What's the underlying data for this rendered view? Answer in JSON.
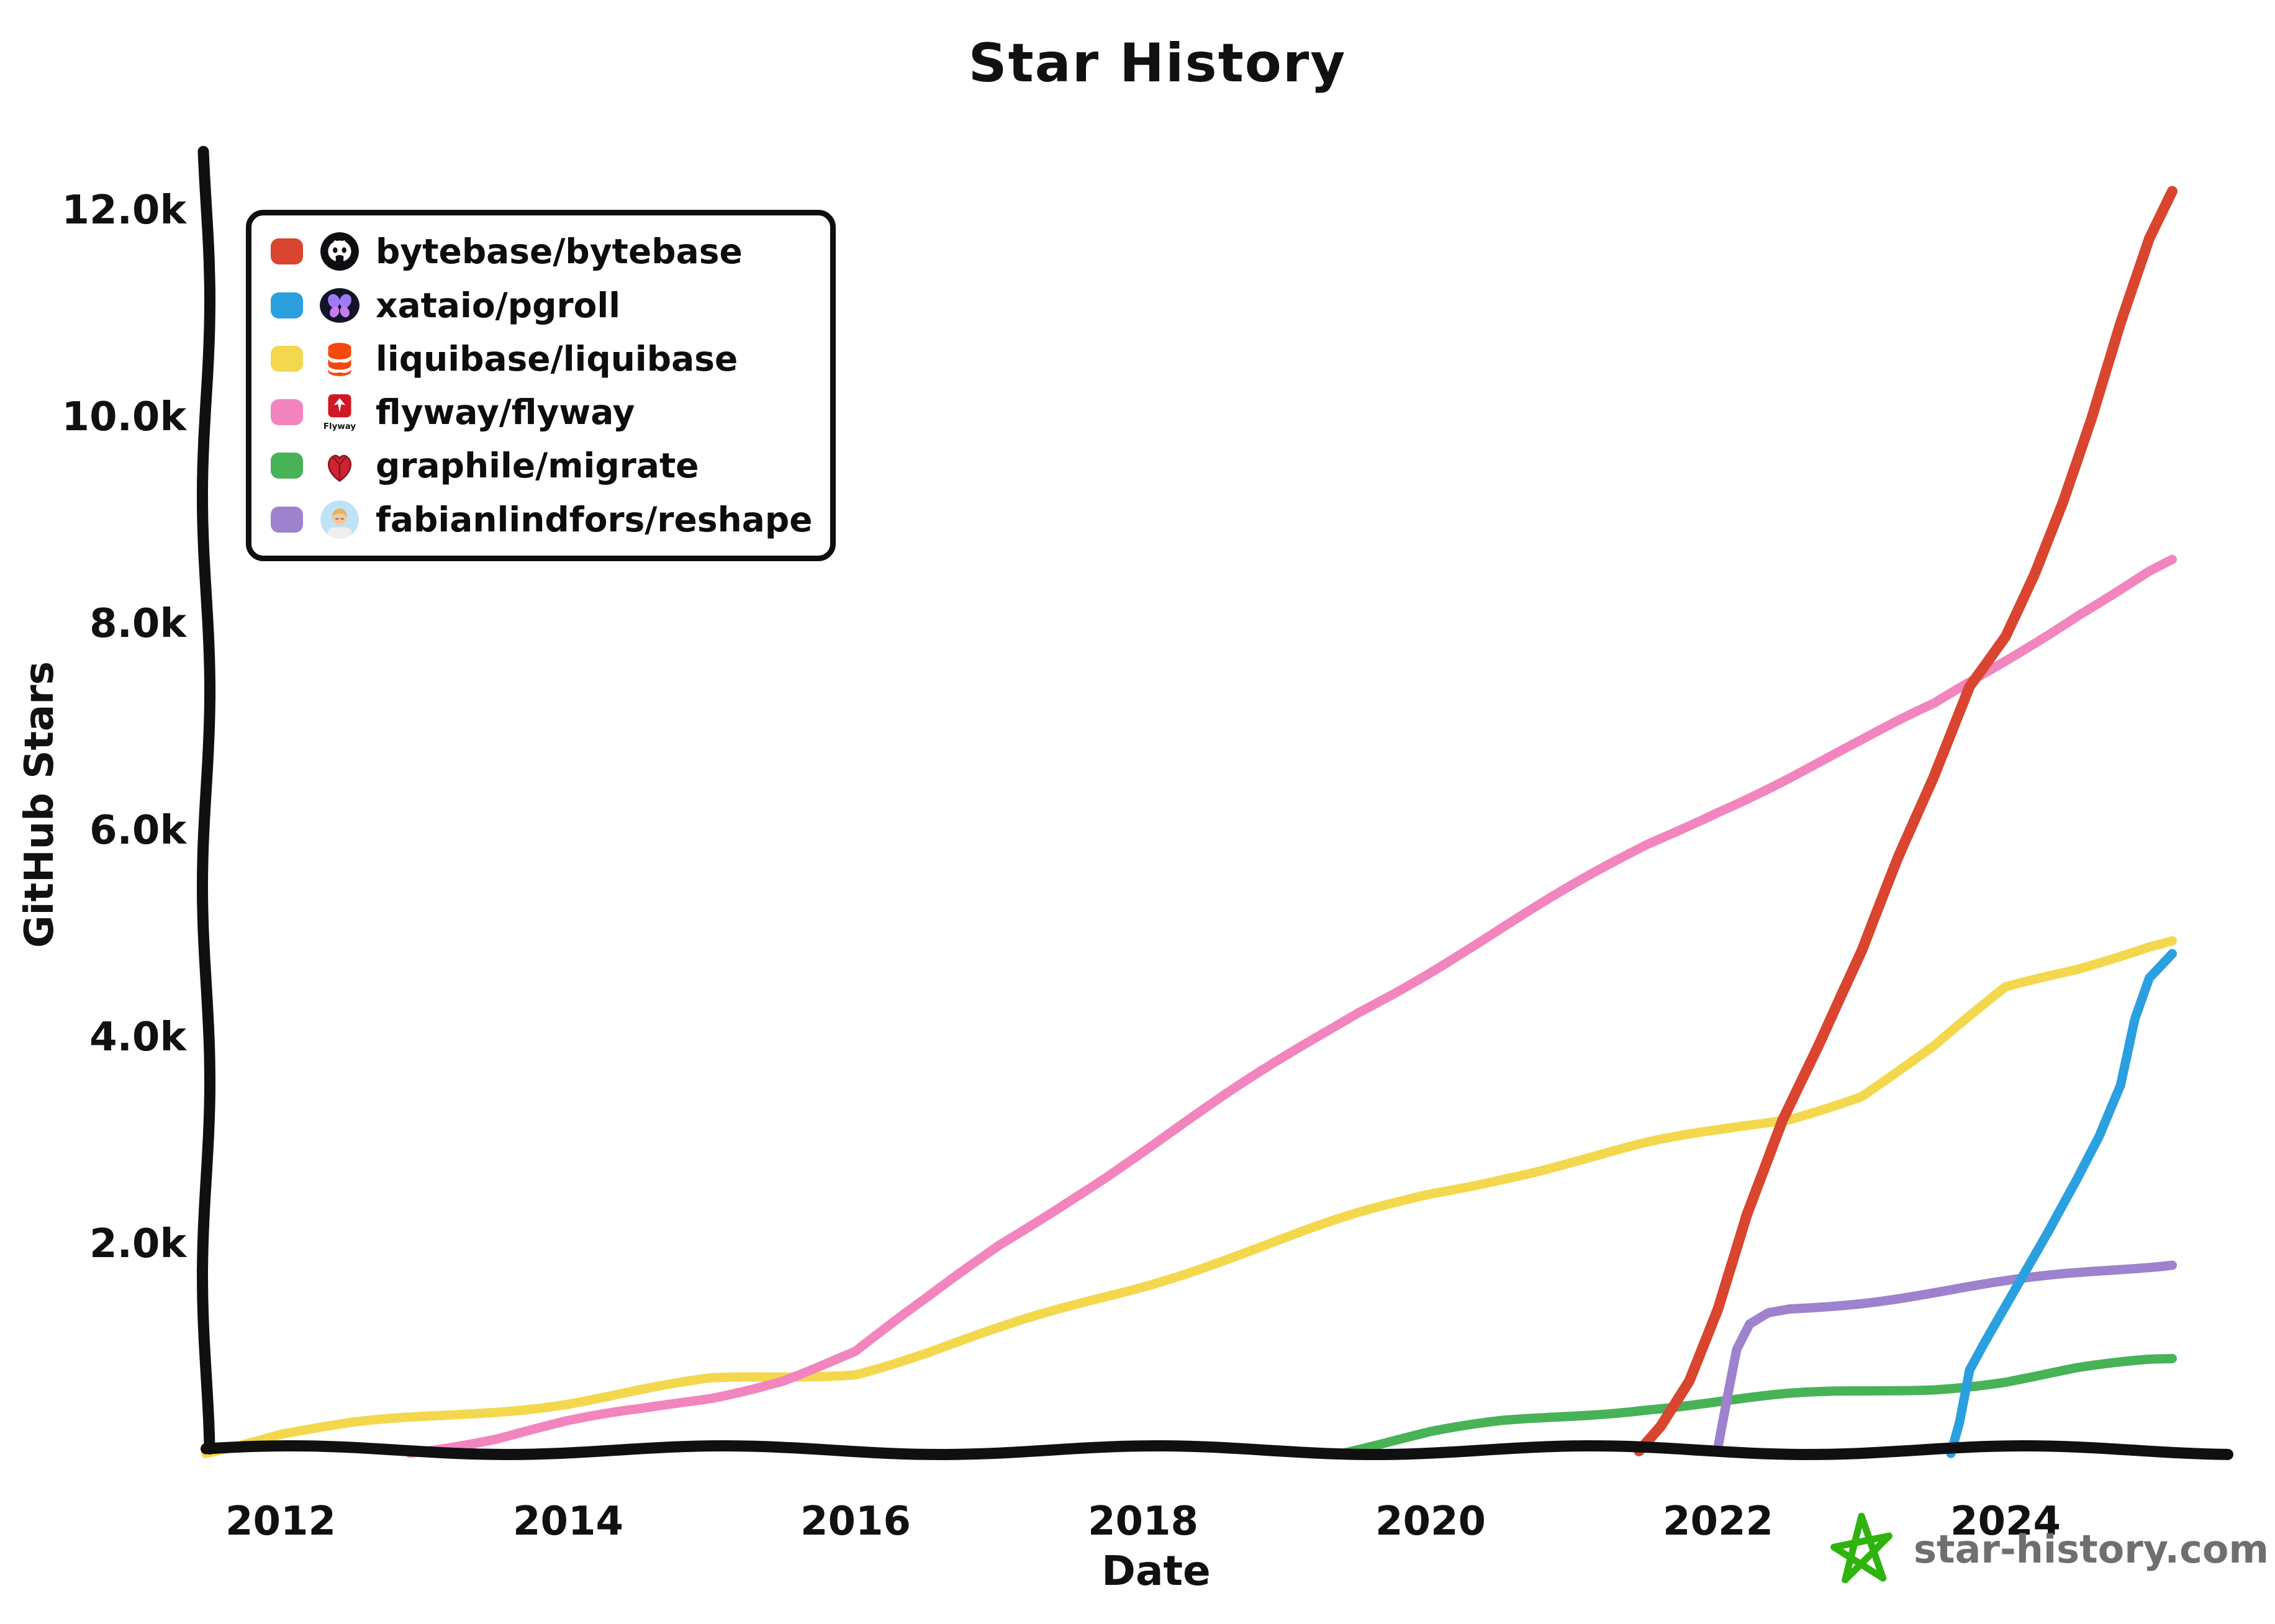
{
  "title": "Star History",
  "axes": {
    "x_label": "Date",
    "y_label": "GitHub Stars",
    "x_ticks": [
      "2012",
      "2014",
      "2016",
      "2018",
      "2020",
      "2022",
      "2024"
    ],
    "y_ticks": [
      "2.0k",
      "4.0k",
      "6.0k",
      "8.0k",
      "10.0k",
      "12.0k"
    ]
  },
  "watermark": {
    "text": "star-history.com",
    "star_color": "#2fb30e",
    "text_color": "#6f6f6f"
  },
  "legend": {
    "flyway_icon_text": "Flyway"
  },
  "chart_data": {
    "type": "line",
    "title": "Star History",
    "xlabel": "Date",
    "ylabel": "GitHub Stars",
    "x_range": [
      2011.48,
      2025.25
    ],
    "y_range": [
      0,
      12400
    ],
    "x_tick_years": [
      2012,
      2014,
      2016,
      2018,
      2020,
      2022,
      2024
    ],
    "y_tick_values": [
      2000,
      4000,
      6000,
      8000,
      10000,
      12000
    ],
    "grid": false,
    "legend_position": "top-left",
    "units": "GitHub stars",
    "series": [
      {
        "name": "bytebase/bytebase",
        "color": "#d9452f",
        "icon": "bytebase-avatar",
        "points": [
          [
            2021.45,
            0
          ],
          [
            2021.6,
            250
          ],
          [
            2021.8,
            700
          ],
          [
            2022.0,
            1400
          ],
          [
            2022.2,
            2300
          ],
          [
            2022.45,
            3200
          ],
          [
            2022.7,
            3900
          ],
          [
            2023.0,
            4800
          ],
          [
            2023.25,
            5700
          ],
          [
            2023.5,
            6500
          ],
          [
            2023.75,
            7400
          ],
          [
            2024.0,
            7900
          ],
          [
            2024.2,
            8500
          ],
          [
            2024.4,
            9200
          ],
          [
            2024.6,
            10000
          ],
          [
            2024.8,
            10900
          ],
          [
            2025.0,
            11700
          ],
          [
            2025.16,
            12150
          ]
        ]
      },
      {
        "name": "xataio/pgroll",
        "color": "#2ba0e0",
        "icon": "xata-butterfly",
        "points": [
          [
            2023.62,
            0
          ],
          [
            2023.68,
            300
          ],
          [
            2023.75,
            800
          ],
          [
            2023.85,
            1050
          ],
          [
            2024.0,
            1400
          ],
          [
            2024.15,
            1750
          ],
          [
            2024.3,
            2100
          ],
          [
            2024.5,
            2600
          ],
          [
            2024.65,
            3000
          ],
          [
            2024.8,
            3500
          ],
          [
            2024.9,
            4150
          ],
          [
            2025.0,
            4550
          ],
          [
            2025.16,
            4800
          ]
        ]
      },
      {
        "name": "liquibase/liquibase",
        "color": "#f3d84e",
        "icon": "liquibase-logo",
        "points": [
          [
            2011.48,
            0
          ],
          [
            2012.0,
            160
          ],
          [
            2012.5,
            240
          ],
          [
            2013.0,
            310
          ],
          [
            2013.5,
            390
          ],
          [
            2014.0,
            470
          ],
          [
            2014.5,
            570
          ],
          [
            2015.0,
            670
          ],
          [
            2015.5,
            710
          ],
          [
            2016.0,
            760
          ],
          [
            2016.5,
            950
          ],
          [
            2017.0,
            1160
          ],
          [
            2017.5,
            1380
          ],
          [
            2018.0,
            1600
          ],
          [
            2018.5,
            1830
          ],
          [
            2019.0,
            2050
          ],
          [
            2019.5,
            2270
          ],
          [
            2020.0,
            2480
          ],
          [
            2020.5,
            2650
          ],
          [
            2021.0,
            2800
          ],
          [
            2021.5,
            2950
          ],
          [
            2022.0,
            3080
          ],
          [
            2022.5,
            3220
          ],
          [
            2023.0,
            3450
          ],
          [
            2023.5,
            3900
          ],
          [
            2024.0,
            4450
          ],
          [
            2024.5,
            4650
          ],
          [
            2025.0,
            4900
          ],
          [
            2025.16,
            4960
          ]
        ]
      },
      {
        "name": "flyway/flyway",
        "color": "#f285bd",
        "icon": "flyway-logo",
        "points": [
          [
            2012.9,
            0
          ],
          [
            2013.5,
            120
          ],
          [
            2014.0,
            260
          ],
          [
            2014.5,
            380
          ],
          [
            2015.0,
            520
          ],
          [
            2015.5,
            700
          ],
          [
            2016.0,
            950
          ],
          [
            2016.5,
            1450
          ],
          [
            2017.0,
            1980
          ],
          [
            2017.5,
            2450
          ],
          [
            2018.0,
            2900
          ],
          [
            2018.5,
            3350
          ],
          [
            2019.0,
            3800
          ],
          [
            2019.5,
            4250
          ],
          [
            2020.0,
            4650
          ],
          [
            2020.5,
            5050
          ],
          [
            2021.0,
            5450
          ],
          [
            2021.5,
            5850
          ],
          [
            2022.0,
            6200
          ],
          [
            2022.5,
            6520
          ],
          [
            2023.0,
            6850
          ],
          [
            2023.5,
            7200
          ],
          [
            2024.0,
            7650
          ],
          [
            2024.5,
            8100
          ],
          [
            2025.0,
            8500
          ],
          [
            2025.16,
            8600
          ]
        ]
      },
      {
        "name": "graphile/migrate",
        "color": "#48b257",
        "icon": "graphile-heart",
        "points": [
          [
            2019.4,
            0
          ],
          [
            2019.7,
            80
          ],
          [
            2020.0,
            160
          ],
          [
            2020.5,
            260
          ],
          [
            2021.0,
            340
          ],
          [
            2021.5,
            420
          ],
          [
            2022.0,
            470
          ],
          [
            2022.5,
            520
          ],
          [
            2023.0,
            560
          ],
          [
            2023.5,
            610
          ],
          [
            2024.0,
            680
          ],
          [
            2024.5,
            780
          ],
          [
            2025.0,
            850
          ],
          [
            2025.16,
            865
          ]
        ]
      },
      {
        "name": "fabianlindfors/reshape",
        "color": "#9e82cd",
        "icon": "fabianlindfors-avatar",
        "points": [
          [
            2022.0,
            0
          ],
          [
            2022.06,
            450
          ],
          [
            2022.13,
            950
          ],
          [
            2022.22,
            1200
          ],
          [
            2022.35,
            1320
          ],
          [
            2022.5,
            1370
          ],
          [
            2022.75,
            1410
          ],
          [
            2023.0,
            1450
          ],
          [
            2023.5,
            1530
          ],
          [
            2024.0,
            1610
          ],
          [
            2024.5,
            1700
          ],
          [
            2025.0,
            1790
          ],
          [
            2025.16,
            1820
          ]
        ]
      }
    ]
  }
}
